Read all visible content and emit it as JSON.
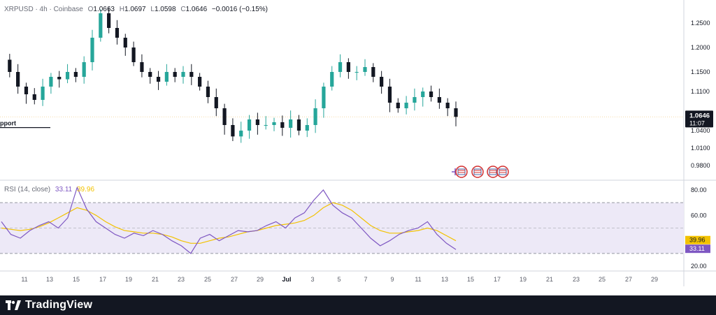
{
  "header": {
    "symbol": "XRPUSD · 4h · Coinbase",
    "open_label": "O",
    "open": "1.0663",
    "high_label": "H",
    "high": "1.0697",
    "low_label": "L",
    "low": "1.0598",
    "close_label": "C",
    "close": "1.0646",
    "change": "−0.0016 (−0.15%)"
  },
  "rsi_header": {
    "label": "RSI (14, close)",
    "rsi_value": "33.11",
    "ma_value": "39.96"
  },
  "support_label": "pport",
  "price_badge": {
    "price": "1.0646",
    "countdown": "11:07"
  },
  "rsi_badges": {
    "ma": "39.96",
    "rsi": "33.11"
  },
  "footer": {
    "brand": "TradingView"
  },
  "colors": {
    "up": "#26a69a",
    "down": "#131722",
    "rsi": "#7e57c2",
    "rsi_ma": "#f2c200",
    "band": "#ede9f7"
  },
  "chart_data": [
    {
      "type": "candlestick",
      "title": "XRPUSD · 4h · Coinbase",
      "y_ticks": [
        "1.2500",
        "1.2000",
        "1.1500",
        "1.1100",
        "1.0400",
        "1.0100",
        "0.9800"
      ],
      "ylim": [
        0.965,
        1.285
      ],
      "x_ticks": [
        "11",
        "13",
        "15",
        "17",
        "19",
        "21",
        "23",
        "25",
        "27",
        "29",
        "Jul",
        "3",
        "5",
        "7",
        "9",
        "11",
        "13",
        "15",
        "17",
        "19",
        "21",
        "23",
        "25",
        "27",
        "29"
      ],
      "annotations": [
        "pport"
      ],
      "support_level": 1.048,
      "last_price": 1.0646,
      "close_path": [
        1.175,
        1.15,
        1.12,
        1.105,
        1.095,
        1.12,
        1.14,
        1.135,
        1.15,
        1.14,
        1.17,
        1.22,
        1.27,
        1.24,
        1.22,
        1.2,
        1.17,
        1.15,
        1.14,
        1.13,
        1.15,
        1.14,
        1.15,
        1.14,
        1.12,
        1.1,
        1.08,
        1.05,
        1.03,
        1.04,
        1.06,
        1.05,
        1.05,
        1.055,
        1.045,
        1.06,
        1.04,
        1.05,
        1.08,
        1.12,
        1.15,
        1.17,
        1.15,
        1.15,
        1.16,
        1.14,
        1.12,
        1.09,
        1.08,
        1.09,
        1.1,
        1.11,
        1.1,
        1.09,
        1.08,
        1.0646
      ]
    },
    {
      "type": "line",
      "title": "RSI (14, close)",
      "y_ticks": [
        "80.00",
        "60.00",
        "20.00"
      ],
      "ylim": [
        18,
        84
      ],
      "band": [
        30,
        70
      ],
      "mid": 50,
      "series": [
        {
          "name": "RSI",
          "values": [
            55,
            45,
            42,
            48,
            52,
            55,
            50,
            58,
            82,
            65,
            55,
            50,
            45,
            42,
            46,
            44,
            48,
            45,
            40,
            36,
            30,
            42,
            45,
            40,
            44,
            48,
            47,
            48,
            52,
            55,
            50,
            58,
            62,
            72,
            80,
            68,
            62,
            58,
            50,
            42,
            36,
            40,
            45,
            48,
            50,
            55,
            45,
            38,
            33.11
          ]
        },
        {
          "name": "MA",
          "values": [
            50,
            49,
            48,
            49,
            51,
            54,
            58,
            62,
            66,
            64,
            60,
            55,
            51,
            48,
            47,
            46,
            46,
            45,
            43,
            40,
            38,
            38,
            40,
            42,
            43,
            45,
            47,
            48,
            50,
            52,
            53,
            54,
            56,
            60,
            66,
            70,
            68,
            64,
            58,
            52,
            48,
            46,
            46,
            47,
            48,
            50,
            48,
            44,
            39.96
          ]
        }
      ]
    }
  ]
}
